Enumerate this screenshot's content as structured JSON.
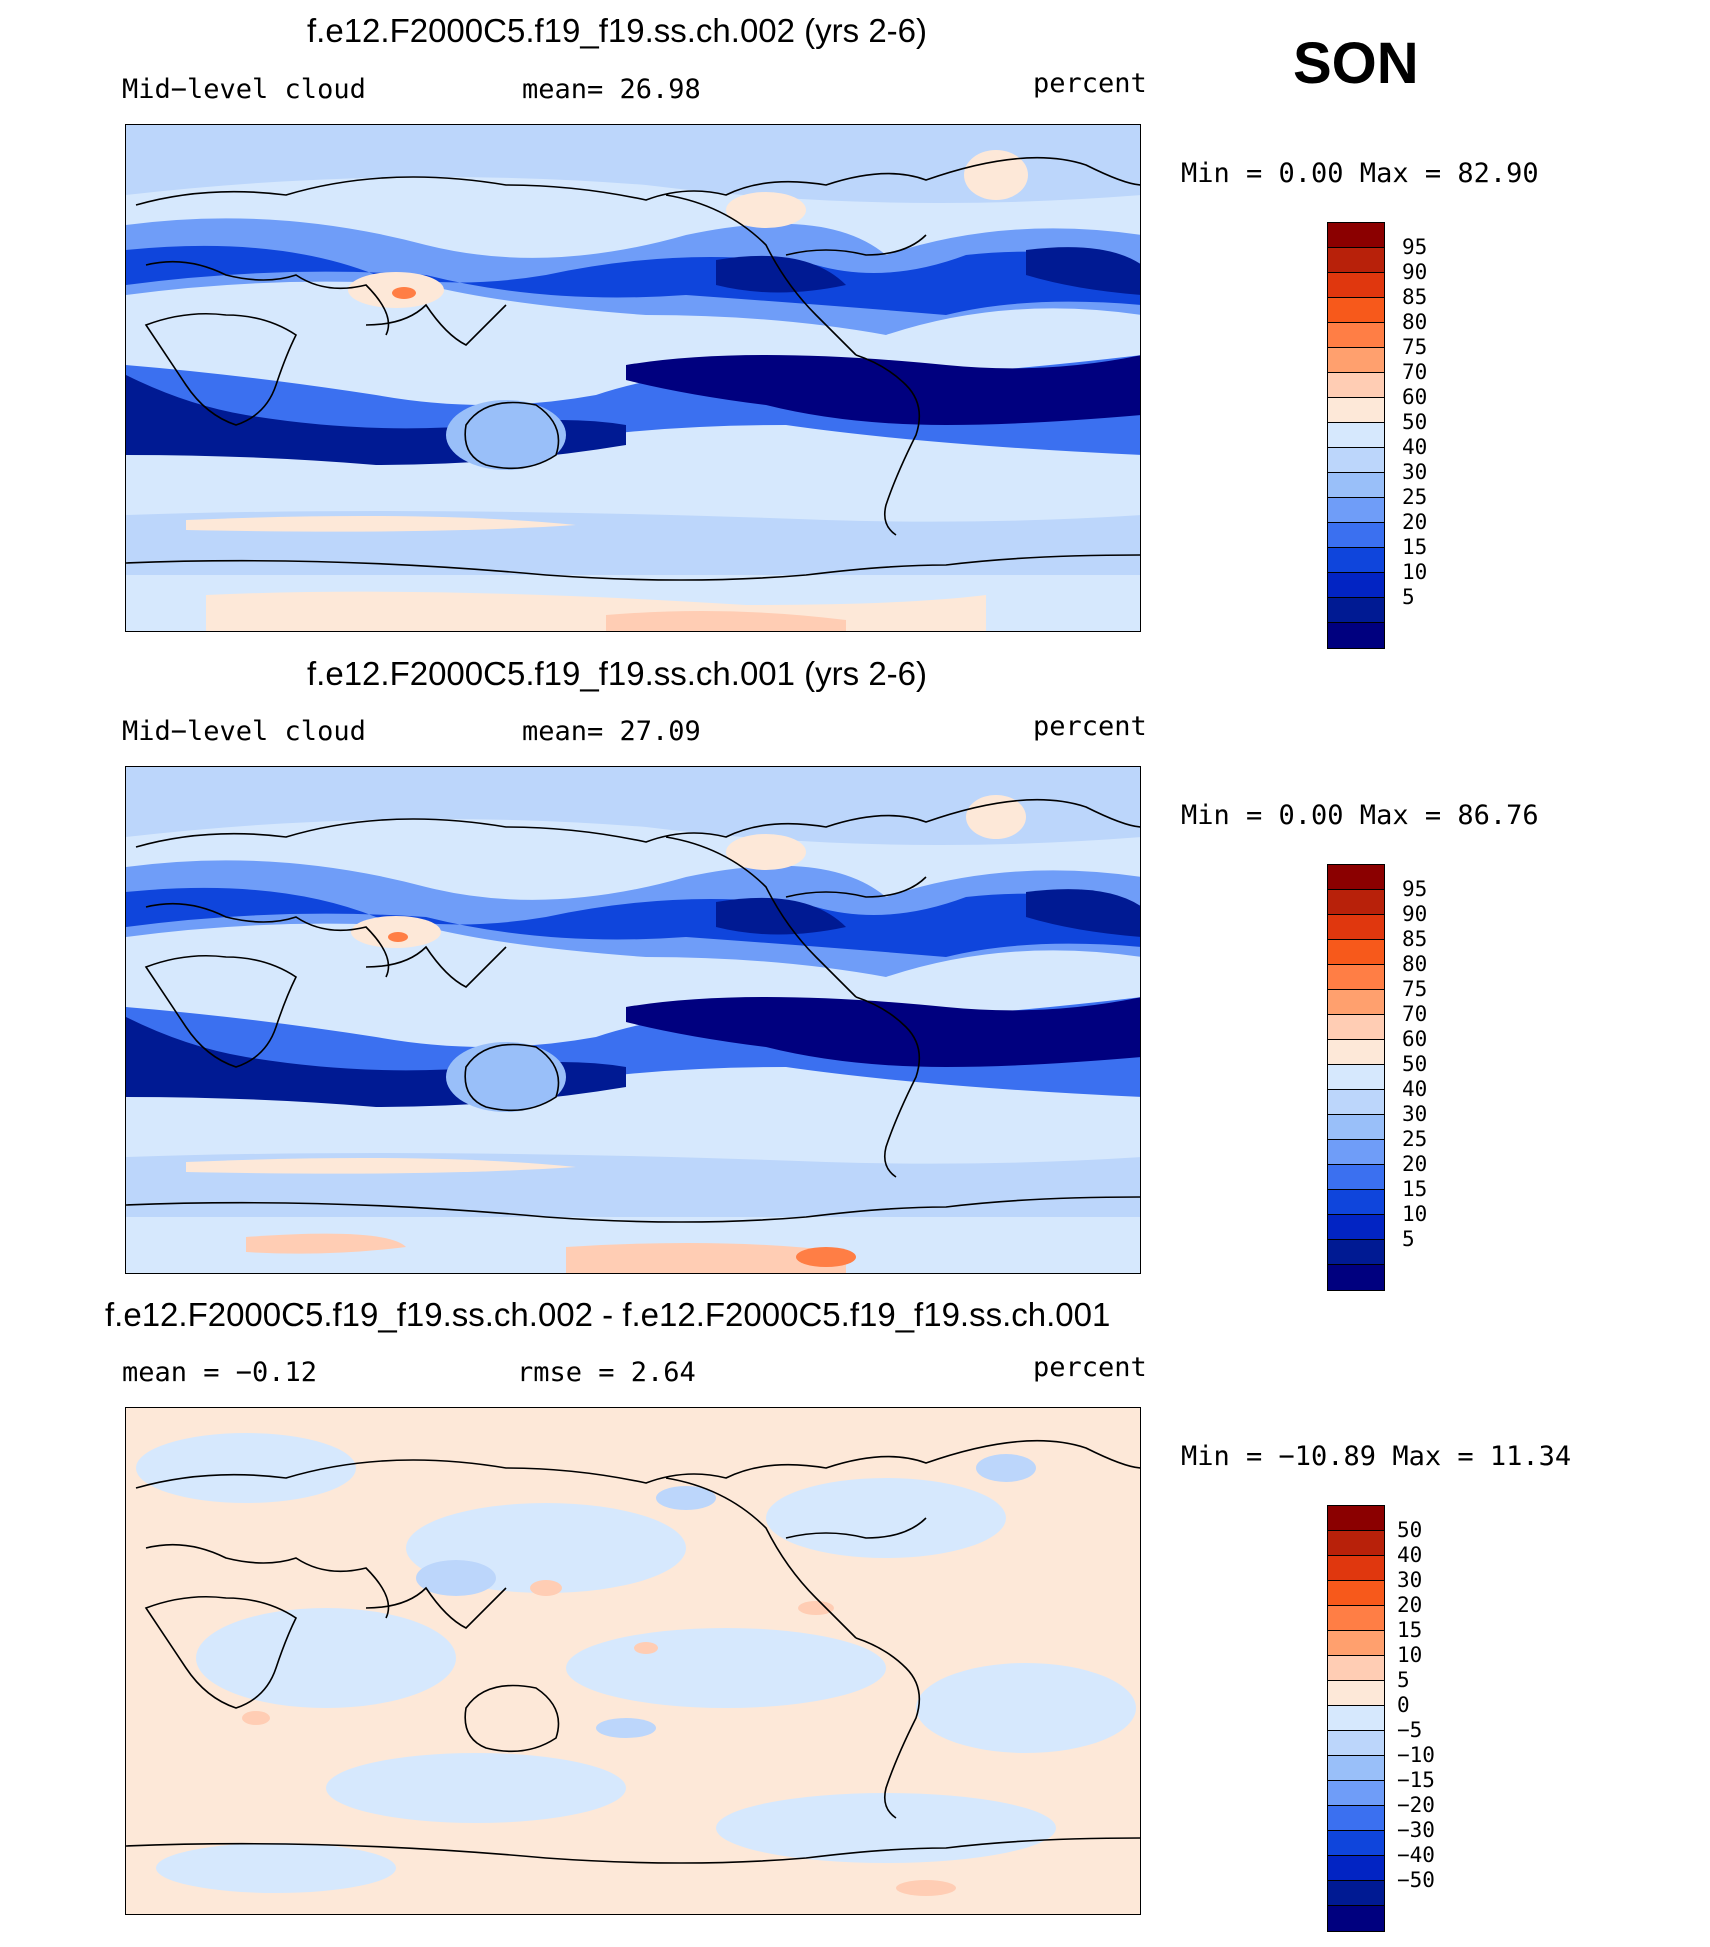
{
  "season": "SON",
  "colors": {
    "abs_scale": [
      "#8b0000",
      "#b8210a",
      "#e0370e",
      "#f7591b",
      "#ff7e45",
      "#ffa06e",
      "#ffcdb4",
      "#fde8d8",
      "#d6e8fd",
      "#bcd6fb",
      "#99bff9",
      "#6f9df8",
      "#3b70f0",
      "#0f45dc",
      "#0224c3",
      "#001a93",
      "#00007f"
    ],
    "diff_scale": [
      "#8b0000",
      "#b8210a",
      "#e0370e",
      "#f7591b",
      "#ff7e45",
      "#ffa06e",
      "#ffcdb4",
      "#fde8d8",
      "#d6e8fd",
      "#bcd6fb",
      "#99bff9",
      "#6f9df8",
      "#3b70f0",
      "#0f45dc",
      "#0224c3",
      "#001a93",
      "#00007f"
    ]
  },
  "panels": [
    {
      "title": "f.e12.F2000C5.f19_f19.ss.ch.002 (yrs 2-6)",
      "left": "Mid−level cloud",
      "center": "mean=   26.98",
      "right": "percent",
      "minmax": "Min =     0.00 Max =   82.90",
      "scale": "abs",
      "ticks": [
        "95",
        "90",
        "85",
        "80",
        "75",
        "70",
        "60",
        "50",
        "40",
        "30",
        "25",
        "20",
        "15",
        "10",
        "5"
      ]
    },
    {
      "title": "f.e12.F2000C5.f19_f19.ss.ch.001 (yrs 2-6)",
      "left": "Mid−level cloud",
      "center": "mean=   27.09",
      "right": "percent",
      "minmax": "Min =     0.00 Max =   86.76",
      "scale": "abs",
      "ticks": [
        "95",
        "90",
        "85",
        "80",
        "75",
        "70",
        "60",
        "50",
        "40",
        "30",
        "25",
        "20",
        "15",
        "10",
        "5"
      ]
    },
    {
      "title": "f.e12.F2000C5.f19_f19.ss.ch.002 - f.e12.F2000C5.f19_f19.ss.ch.001",
      "left": "mean =   −0.12",
      "center": "rmse =    2.64",
      "right": "percent",
      "minmax": "Min = −10.89 Max =   11.34",
      "scale": "diff",
      "ticks": [
        "50",
        "40",
        "30",
        "20",
        "15",
        "10",
        "5",
        "0",
        "−5",
        "−10",
        "−15",
        "−20",
        "−30",
        "−40",
        "−50"
      ]
    }
  ]
}
